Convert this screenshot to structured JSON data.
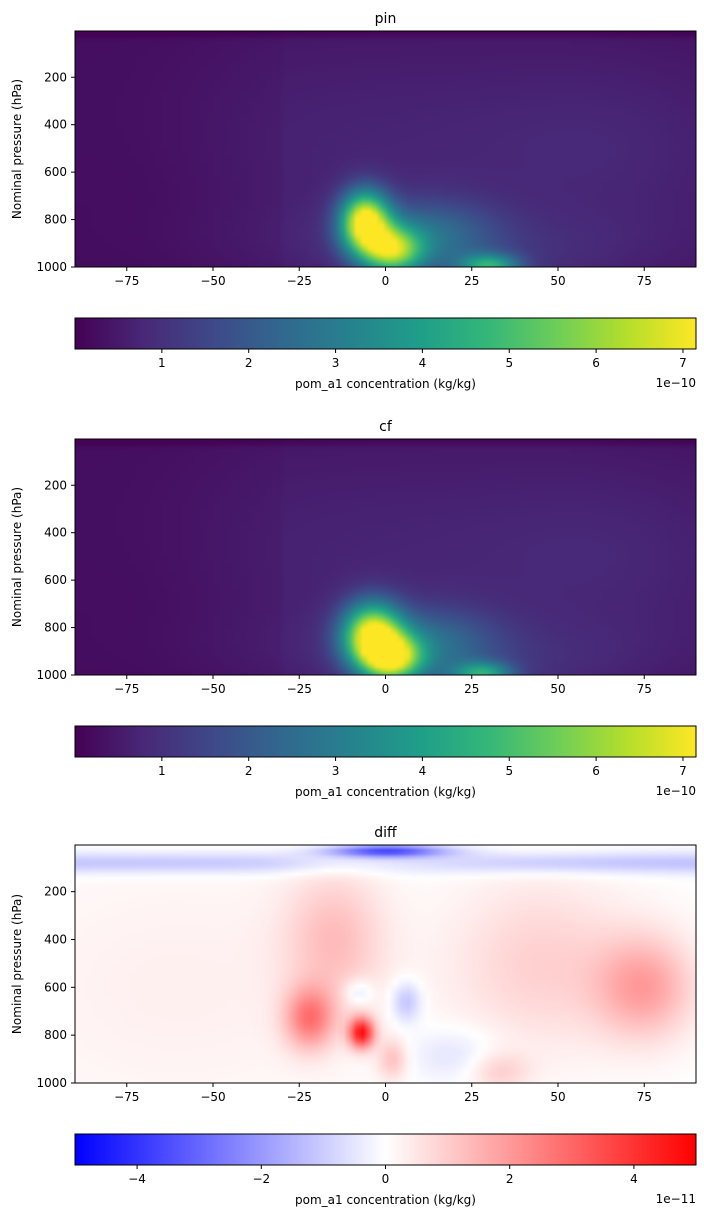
{
  "chart_data": [
    {
      "type": "heatmap",
      "title": "pin",
      "ylabel": "Nominal pressure (hPa)",
      "xlabel": "",
      "xlim": [
        -90,
        90
      ],
      "ylim": [
        1000,
        5
      ],
      "x_ticks": [
        "−75",
        "−50",
        "−25",
        "0",
        "25",
        "50",
        "75"
      ],
      "x_tick_values": [
        -75,
        -50,
        -25,
        0,
        25,
        50,
        75
      ],
      "y_ticks": [
        "200",
        "400",
        "600",
        "800",
        "1000"
      ],
      "y_tick_values": [
        200,
        400,
        600,
        800,
        1000
      ],
      "colormap": "viridis",
      "grid": false,
      "features": [
        {
          "lat": -6,
          "p": 810,
          "value": 7.1e-10,
          "spread_lat": 5,
          "spread_p": 90
        },
        {
          "lat": 2,
          "p": 930,
          "value": 5.5e-10,
          "spread_lat": 6,
          "spread_p": 70
        },
        {
          "lat": 30,
          "p": 990,
          "value": 4.2e-10,
          "spread_lat": 6,
          "spread_p": 40
        }
      ],
      "colorbar": {
        "label": "pom_a1 concentration (kg/kg)",
        "ticks": [
          "1",
          "2",
          "3",
          "4",
          "5",
          "6",
          "7"
        ],
        "tick_values": [
          1,
          2,
          3,
          4,
          5,
          6,
          7
        ],
        "range": [
          0,
          7.15
        ],
        "offset_text": "1e−10",
        "colors": [
          "#440154",
          "#482878",
          "#3e4989",
          "#31688e",
          "#26828e",
          "#1f9e89",
          "#35b779",
          "#6ece58",
          "#b5de2b",
          "#fde725"
        ]
      }
    },
    {
      "type": "heatmap",
      "title": "cf",
      "ylabel": "Nominal pressure (hPa)",
      "xlabel": "",
      "xlim": [
        -90,
        90
      ],
      "ylim": [
        1000,
        5
      ],
      "x_ticks": [
        "−75",
        "−50",
        "−25",
        "0",
        "25",
        "50",
        "75"
      ],
      "x_tick_values": [
        -75,
        -50,
        -25,
        0,
        25,
        50,
        75
      ],
      "y_ticks": [
        "200",
        "400",
        "600",
        "800",
        "1000"
      ],
      "y_tick_values": [
        200,
        400,
        600,
        800,
        1000
      ],
      "colormap": "viridis",
      "grid": false,
      "features": [
        {
          "lat": -4,
          "p": 830,
          "value": 6.9e-10,
          "spread_lat": 6,
          "spread_p": 90
        },
        {
          "lat": 2,
          "p": 930,
          "value": 6e-10,
          "spread_lat": 6,
          "spread_p": 70
        },
        {
          "lat": 28,
          "p": 990,
          "value": 4e-10,
          "spread_lat": 6,
          "spread_p": 40
        }
      ],
      "colorbar": {
        "label": "pom_a1 concentration (kg/kg)",
        "ticks": [
          "1",
          "2",
          "3",
          "4",
          "5",
          "6",
          "7"
        ],
        "tick_values": [
          1,
          2,
          3,
          4,
          5,
          6,
          7
        ],
        "range": [
          0,
          7.15
        ],
        "offset_text": "1e−10",
        "colors": [
          "#440154",
          "#482878",
          "#3e4989",
          "#31688e",
          "#26828e",
          "#1f9e89",
          "#35b779",
          "#6ece58",
          "#b5de2b",
          "#fde725"
        ]
      }
    },
    {
      "type": "heatmap",
      "title": "diff",
      "ylabel": "Nominal pressure (hPa)",
      "xlabel": "",
      "xlim": [
        -90,
        90
      ],
      "ylim": [
        1000,
        5
      ],
      "x_ticks": [
        "−75",
        "−50",
        "−25",
        "0",
        "25",
        "50",
        "75"
      ],
      "x_tick_values": [
        -75,
        -50,
        -25,
        0,
        25,
        50,
        75
      ],
      "y_ticks": [
        "200",
        "400",
        "600",
        "800",
        "1000"
      ],
      "y_tick_values": [
        200,
        400,
        600,
        800,
        1000
      ],
      "colormap": "bwr",
      "grid": false,
      "features": [
        {
          "lat": -7,
          "p": 790,
          "value": 4.6e-11
        },
        {
          "lat": -22,
          "p": 740,
          "value": 2.5e-11
        },
        {
          "lat": 75,
          "p": 600,
          "value": 1.8e-11
        },
        {
          "lat": 0,
          "p": 30,
          "value": -3.5e-11
        },
        {
          "lat": 6,
          "p": 660,
          "value": -1.3e-11
        }
      ],
      "colorbar": {
        "label": "pom_a1 concentration (kg/kg)",
        "ticks": [
          "−4",
          "−2",
          "0",
          "2",
          "4"
        ],
        "tick_values": [
          -4,
          -2,
          0,
          2,
          4
        ],
        "range": [
          -5,
          5
        ],
        "offset_text": "1e−11",
        "colors": [
          "#0000ff",
          "#ffffff",
          "#ff0000"
        ]
      }
    }
  ]
}
